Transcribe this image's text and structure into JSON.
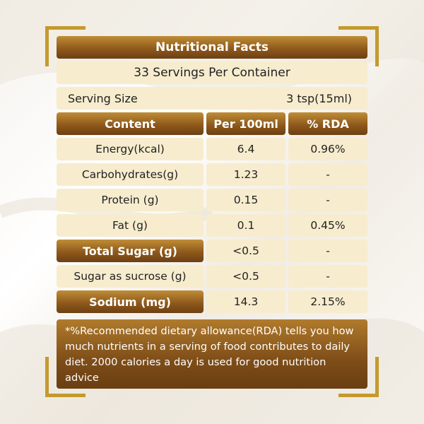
{
  "title": "Nutritional Facts",
  "servings_per_container": "33 Servings Per Container",
  "serving_size": {
    "label": "Serving Size",
    "value": "3 tsp(15ml)"
  },
  "table": {
    "headers": [
      "Content",
      "Per 100ml",
      "% RDA"
    ],
    "rows": [
      {
        "name": "Energy(kcal)",
        "per100": "6.4",
        "rda": "0.96%",
        "highlight": false
      },
      {
        "name": "Carbohydrates(g)",
        "per100": "1.23",
        "rda": "-",
        "highlight": false
      },
      {
        "name": "Protein (g)",
        "per100": "0.15",
        "rda": "-",
        "highlight": false
      },
      {
        "name": "Fat (g)",
        "per100": "0.1",
        "rda": "0.45%",
        "highlight": false
      },
      {
        "name": "Total Sugar (g)",
        "per100": "<0.5",
        "rda": "-",
        "highlight": true
      },
      {
        "name": "Sugar as sucrose (g)",
        "per100": "<0.5",
        "rda": "-",
        "highlight": false
      },
      {
        "name": "Sodium (mg)",
        "per100": "14.3",
        "rda": "2.15%",
        "highlight": true
      }
    ]
  },
  "footnote": "*%Recommended dietary allowance(RDA) tells you how much nutrients in a serving of food contributes to daily diet. 2000 calories a day is used for good nutrition advice",
  "colors": {
    "brown": "#7e4d18",
    "gold": "#c49a2e",
    "cream": "#f7ecce"
  }
}
